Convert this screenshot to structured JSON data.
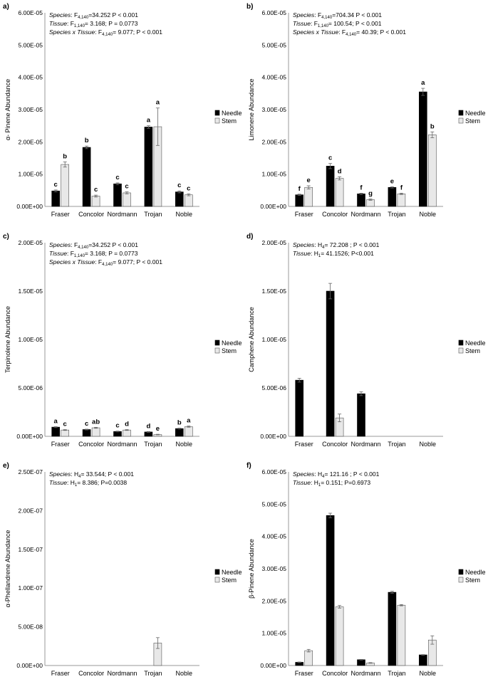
{
  "figure": {
    "categories": [
      "Fraser",
      "Concolor",
      "Nordmann",
      "Trojan",
      "Noble"
    ],
    "legend": [
      "Needle",
      "Stem"
    ],
    "colors": {
      "needle": "#000000",
      "stem": "#e8e8e8",
      "stem_edge": "#555555",
      "axis": "#999999"
    }
  },
  "chart_data": [
    {
      "panel": "a)",
      "type": "bar",
      "ylabel": "α- Pinene Abundance",
      "y_ticks": [
        "0.00E+00",
        "1.00E-05",
        "2.00E-05",
        "3.00E-05",
        "4.00E-05",
        "5.00E-05",
        "6.00E-05"
      ],
      "ylim": [
        0,
        6e-05
      ],
      "stats": [
        {
          "italic": "Species",
          "text": ": F",
          "sub": "4,140",
          "rest": "=34.252  P < 0.001"
        },
        {
          "italic": "Tissue",
          "text": ": F",
          "sub": "1,140",
          "rest": "= 3.168; P = 0.0773"
        },
        {
          "italic": "Species x Tissue",
          "text": ": F",
          "sub": "4,140",
          "rest": "= 9.077; P < 0.001"
        }
      ],
      "categories": [
        "Fraser",
        "Concolor",
        "Nordmann",
        "Trojan",
        "Noble"
      ],
      "series": [
        {
          "name": "Needle",
          "values": [
            4.8e-06,
            1.83e-05,
            7e-06,
            2.46e-05,
            4.5e-06
          ],
          "errors": [
            3e-07,
            4e-07,
            3e-07,
            4e-07,
            3e-07
          ],
          "letters": [
            "c",
            "b",
            "c",
            "a",
            "c"
          ]
        },
        {
          "name": "Stem",
          "values": [
            1.3e-05,
            3.2e-06,
            4.2e-06,
            2.47e-05,
            3.6e-06
          ],
          "errors": [
            8e-07,
            3e-07,
            3e-07,
            5.8e-06,
            3e-07
          ],
          "letters": [
            "b",
            "c",
            "c",
            "a",
            "c"
          ]
        }
      ]
    },
    {
      "panel": "b)",
      "type": "bar",
      "ylabel": "Limonene  Abundance",
      "y_ticks": [
        "0.00E+00",
        "1.00E-05",
        "2.00E-05",
        "3.00E-05",
        "4.00E-05",
        "5.00E-05",
        "6.00E-05"
      ],
      "ylim": [
        0,
        6e-05
      ],
      "stats": [
        {
          "italic": "Species",
          "text": ": F",
          "sub": "4,140",
          "rest": "=704.34  P < 0.001"
        },
        {
          "italic": "Tissue",
          "text": ": F",
          "sub": "1,140",
          "rest": "= 100.54; P < 0.001"
        },
        {
          "italic": "Species x Tissue",
          "text": ": F",
          "sub": "4,140",
          "rest": "= 40.39; P < 0.001"
        }
      ],
      "categories": [
        "Fraser",
        "Concolor",
        "Nordmann",
        "Trojan",
        "Noble"
      ],
      "series": [
        {
          "name": "Needle",
          "values": [
            3.6e-06,
            1.25e-05,
            3.9e-06,
            5.9e-06,
            3.55e-05
          ],
          "errors": [
            2e-07,
            8e-07,
            2e-07,
            2e-07,
            1.1e-06
          ],
          "letters": [
            "f",
            "c",
            "f",
            "e",
            "a"
          ]
        },
        {
          "name": "Stem",
          "values": [
            5.9e-06,
            8.7e-06,
            2.1e-06,
            3.9e-06,
            2.22e-05
          ],
          "errors": [
            5e-07,
            5e-07,
            2e-07,
            2e-07,
            9e-07
          ],
          "letters": [
            "e",
            "d",
            "g",
            "f",
            "b"
          ]
        }
      ]
    },
    {
      "panel": "c)",
      "type": "bar",
      "ylabel": "Terpinolene Abundance",
      "y_ticks": [
        "0.00E+00",
        "5.00E-06",
        "1.00E-05",
        "1.50E-05",
        "2.00E-05"
      ],
      "ylim": [
        0,
        2e-05
      ],
      "stats": [
        {
          "italic": "Species",
          "text": ": F",
          "sub": "4,140",
          "rest": "=34.252  P < 0.001"
        },
        {
          "italic": "Tissue",
          "text": ": F",
          "sub": "1,140",
          "rest": "= 3.168; P = 0.0773"
        },
        {
          "italic": "Species x Tissue",
          "text": ": F",
          "sub": "4,140",
          "rest": "= 9.077; P < 0.001"
        }
      ],
      "categories": [
        "Fraser",
        "Concolor",
        "Nordmann",
        "Trojan",
        "Noble"
      ],
      "series": [
        {
          "name": "Needle",
          "values": [
            9.5e-07,
            7e-07,
            5e-07,
            4.5e-07,
            8e-07
          ],
          "errors": [
            5e-08,
            4e-08,
            4e-08,
            4e-08,
            5e-08
          ],
          "letters": [
            "a",
            "c",
            "c",
            "d",
            "b"
          ]
        },
        {
          "name": "Stem",
          "values": [
            6.5e-07,
            8.8e-07,
            6.5e-07,
            1.8e-07,
            1e-06
          ],
          "errors": [
            4e-08,
            5e-08,
            4e-08,
            3e-08,
            6e-08
          ],
          "letters": [
            "c",
            "ab",
            "d",
            "e",
            "a"
          ]
        }
      ]
    },
    {
      "panel": "d)",
      "type": "bar",
      "ylabel": "Camphene  Abundance",
      "y_ticks": [
        "0.00E+00",
        "5.00E-06",
        "1.00E-05",
        "1.50E-05",
        "2.00E-05"
      ],
      "ylim": [
        0,
        2e-05
      ],
      "stats": [
        {
          "italic": "Species",
          "text": ": H",
          "sub": "4",
          "rest": "= 72.208 ; P < 0.001"
        },
        {
          "italic": "Tissue",
          "text": ": H",
          "sub": "1",
          "rest": "= 41.1526; P<0.001"
        }
      ],
      "categories": [
        "Fraser",
        "Concolor",
        "Nordmann",
        "Trojan",
        "Noble"
      ],
      "series": [
        {
          "name": "Needle",
          "values": [
            5.8e-06,
            1.5e-05,
            4.4e-06,
            0,
            0
          ],
          "errors": [
            2e-07,
            8e-07,
            2e-07,
            0,
            0
          ],
          "letters": [
            "",
            "",
            "",
            "",
            ""
          ]
        },
        {
          "name": "Stem",
          "values": [
            0,
            1.9e-06,
            0,
            0,
            0
          ],
          "errors": [
            0,
            4e-07,
            0,
            0,
            0
          ],
          "letters": [
            "",
            "",
            "",
            "",
            ""
          ]
        }
      ]
    },
    {
      "panel": "e)",
      "type": "bar",
      "ylabel": "α-Phellandrene  Abundance",
      "y_ticks": [
        "0.00E+00",
        "5.00E-08",
        "1.00E-07",
        "1.50E-07",
        "2.00E-07",
        "2.50E-07"
      ],
      "ylim": [
        0,
        2.5e-07
      ],
      "stats": [
        {
          "italic": "Species",
          "text": ": H",
          "sub": "4",
          "rest": "= 33.544; P < 0.001"
        },
        {
          "italic": "Tissue",
          "text": ": H",
          "sub": "1",
          "rest": "= 8.386; P=0.0038"
        }
      ],
      "categories": [
        "Fraser",
        "Concolor",
        "Nordmann",
        "Trojan",
        "Noble"
      ],
      "series": [
        {
          "name": "Needle",
          "values": [
            0,
            0,
            0,
            0,
            0
          ],
          "errors": [
            0,
            0,
            0,
            0,
            0
          ],
          "letters": [
            "",
            "",
            "",
            "",
            ""
          ]
        },
        {
          "name": "Stem",
          "values": [
            0,
            0,
            0,
            2.9e-08,
            0
          ],
          "errors": [
            0,
            0,
            0,
            7e-09,
            0
          ],
          "letters": [
            "",
            "",
            "",
            "",
            ""
          ]
        }
      ]
    },
    {
      "panel": "f)",
      "type": "bar",
      "ylabel": "β-Pinene  Abundance",
      "y_ticks": [
        "0.00E+00",
        "1.00E-05",
        "2.00E-05",
        "3.00E-05",
        "4.00E-05",
        "5.00E-05",
        "6.00E-05"
      ],
      "ylim": [
        0,
        6e-05
      ],
      "stats": [
        {
          "italic": "Species",
          "text": ": H",
          "sub": "4",
          "rest": "= 121.16 ; P < 0.001"
        },
        {
          "italic": "Tissue",
          "text": ": H",
          "sub": "1",
          "rest": "= 0.151; P=0.6973"
        }
      ],
      "categories": [
        "Fraser",
        "Concolor",
        "Nordmann",
        "Trojan",
        "Noble"
      ],
      "series": [
        {
          "name": "Needle",
          "values": [
            1e-06,
            4.65e-05,
            1.8e-06,
            2.27e-05,
            3.3e-06
          ],
          "errors": [
            1e-07,
            7e-07,
            1e-07,
            3e-07,
            1e-07
          ],
          "letters": [
            "",
            "",
            "",
            "",
            ""
          ]
        },
        {
          "name": "Stem",
          "values": [
            4.6e-06,
            1.82e-05,
            8e-07,
            1.87e-05,
            7.9e-06
          ],
          "errors": [
            4e-07,
            4e-07,
            1e-07,
            2e-07,
            1.3e-06
          ],
          "letters": [
            "",
            "",
            "",
            "",
            ""
          ]
        }
      ]
    }
  ]
}
